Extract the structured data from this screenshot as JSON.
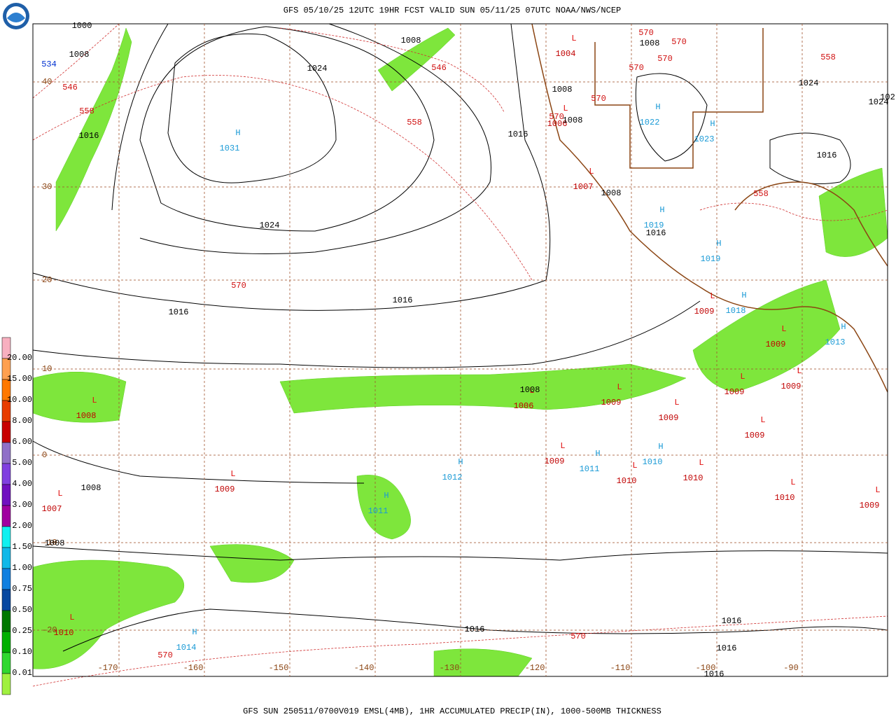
{
  "header": {
    "title": "GFS 05/10/25 12UTC 19HR FCST VALID SUN 05/11/25 07UTC NOAA/NWS/NCEP"
  },
  "footer": {
    "text": "GFS SUN 250511/0700V019 EMSL(4MB), 1HR ACCUMULATED PRECIP(IN), 1000-500MB THICKNESS"
  },
  "legend": {
    "labels": [
      "20.00",
      "15.00",
      "10.00",
      "8.00",
      "6.00",
      "5.00",
      "4.00",
      "3.00",
      "2.00",
      "1.50",
      "1.00",
      "0.75",
      "0.50",
      "0.25",
      "0.10",
      "0.01"
    ],
    "colors": [
      "#f8b0c0",
      "#ffa050",
      "#ff7800",
      "#e83c00",
      "#c80000",
      "#9070c8",
      "#8040e0",
      "#7010c0",
      "#a000a0",
      "#10f0f0",
      "#10b8e8",
      "#1080e0",
      "#0848a0",
      "#007800",
      "#00b000",
      "#30d830",
      "#a0f040"
    ]
  },
  "latitudes": [
    40,
    30,
    20,
    10,
    0,
    -10,
    -20
  ],
  "longitudes": [
    -170,
    -160,
    -150,
    -140,
    -130,
    -120,
    -110,
    -100,
    -90
  ],
  "centers": [
    {
      "symbol": "H",
      "pressure": 1031
    },
    {
      "symbol": "L",
      "pressure": 1004
    },
    {
      "symbol": "L",
      "pressure": 1006
    },
    {
      "symbol": "H",
      "pressure": 1022
    },
    {
      "symbol": "H",
      "pressure": 1023
    },
    {
      "symbol": "L",
      "pressure": 1007
    },
    {
      "symbol": "H",
      "pressure": 1019
    },
    {
      "symbol": "H",
      "pressure": 1019
    },
    {
      "symbol": "L",
      "pressure": 1009
    },
    {
      "symbol": "H",
      "pressure": 1018
    },
    {
      "symbol": "L",
      "pressure": 1009
    },
    {
      "symbol": "H",
      "pressure": 1013
    },
    {
      "symbol": "L",
      "pressure": 1008
    },
    {
      "symbol": "L",
      "pressure": 1006
    },
    {
      "symbol": "L",
      "pressure": 1009
    },
    {
      "symbol": "L",
      "pressure": 1009
    },
    {
      "symbol": "L",
      "pressure": 1009
    },
    {
      "symbol": "L",
      "pressure": 1009
    },
    {
      "symbol": "L",
      "pressure": 1009
    },
    {
      "symbol": "L",
      "pressure": 1009
    },
    {
      "symbol": "H",
      "pressure": 1011
    },
    {
      "symbol": "H",
      "pressure": 1010
    },
    {
      "symbol": "L",
      "pressure": 1010
    },
    {
      "symbol": "L",
      "pressure": 1010
    },
    {
      "symbol": "L",
      "pressure": 1010
    },
    {
      "symbol": "L",
      "pressure": 1009
    },
    {
      "symbol": "H",
      "pressure": 1012
    },
    {
      "symbol": "L",
      "pressure": 1009
    },
    {
      "symbol": "L",
      "pressure": 1007
    },
    {
      "symbol": "H",
      "pressure": 1011
    },
    {
      "symbol": "L",
      "pressure": 1010
    },
    {
      "symbol": "H",
      "pressure": 1014
    }
  ],
  "isobar_labels": [
    1000,
    1008,
    1016,
    1024,
    1008,
    1016,
    1008,
    1008,
    1008,
    1008,
    1016,
    1024,
    1016,
    1016,
    1008,
    1008,
    1008,
    1016,
    1016,
    1016,
    1016,
    1024,
    1016,
    1024,
    102
  ],
  "thickness_labels": [
    534,
    546,
    558,
    546,
    558,
    570,
    570,
    570,
    570,
    570,
    570,
    570,
    558,
    558,
    570,
    570
  ]
}
